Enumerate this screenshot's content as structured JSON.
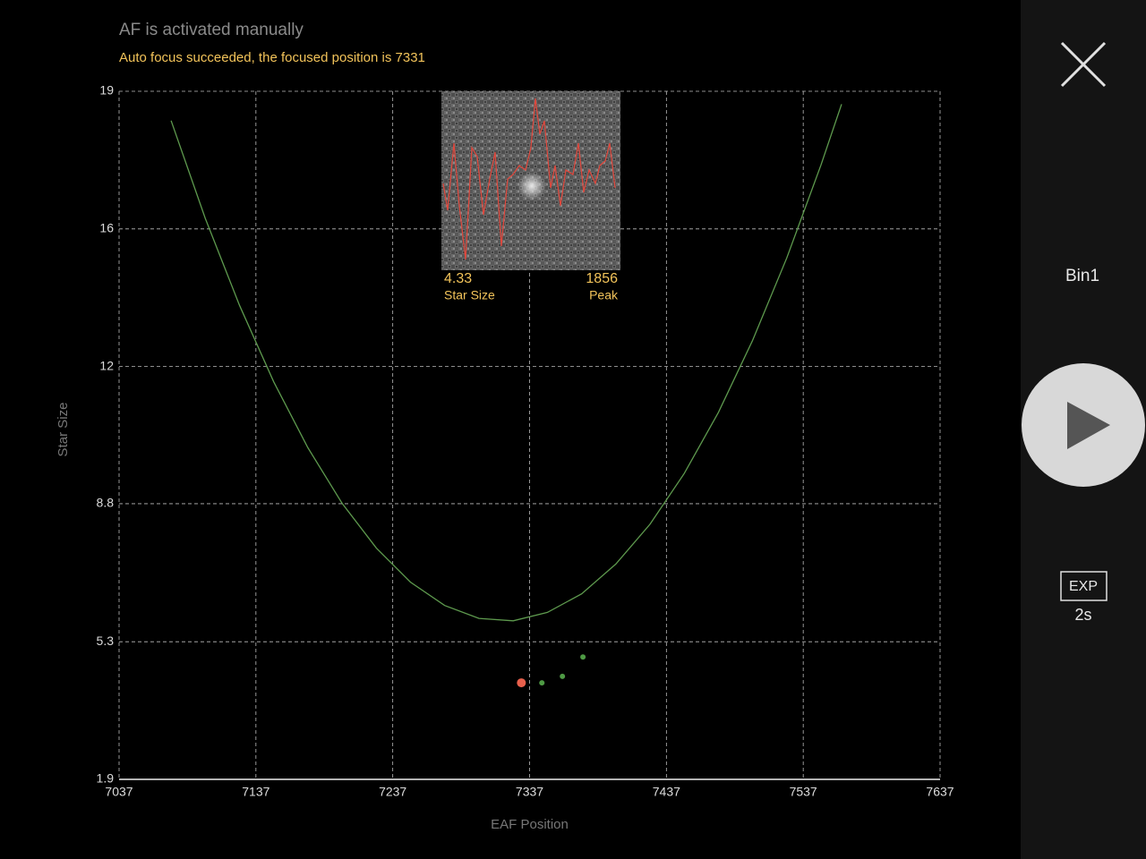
{
  "header": {
    "status": "AF is activated manually",
    "message": "Auto focus succeeded, the focused position is 7331"
  },
  "chart_data": {
    "type": "scatter",
    "x_label": "EAF Position",
    "y_label": "Star Size",
    "xlim": [
      7037,
      7637
    ],
    "xticks": [
      7037,
      7137,
      7237,
      7337,
      7437,
      7537,
      7637
    ],
    "ylim": [
      1.9,
      19
    ],
    "yticks": [
      1.9,
      {
        "value": 5.32,
        "label": "5.3"
      },
      {
        "value": 8.75,
        "label": "8.8"
      },
      {
        "value": 12.16,
        "label": "12"
      },
      {
        "value": 15.58,
        "label": "16"
      },
      19
    ],
    "grid": true,
    "series": [
      {
        "mode": "line",
        "color": "#5e9a4e",
        "x": [
          7075,
          7100,
          7125,
          7150,
          7175,
          7200,
          7225,
          7250,
          7275,
          7300,
          7325,
          7350,
          7375,
          7400,
          7425,
          7450,
          7475,
          7500,
          7525,
          7550,
          7565
        ],
        "values": [
          18.27,
          15.84,
          13.68,
          11.78,
          10.14,
          8.76,
          7.65,
          6.8,
          6.22,
          5.9,
          5.84,
          6.05,
          6.51,
          7.25,
          8.24,
          9.5,
          11.02,
          12.81,
          14.86,
          17.17,
          18.68
        ]
      },
      {
        "mode": "points",
        "color": "#e8604c",
        "marker_size": 5,
        "x": [
          7331
        ],
        "values": [
          4.3
        ]
      },
      {
        "mode": "points",
        "color": "#4e9a44",
        "marker_size": 3,
        "x": [
          7346,
          7361,
          7376
        ],
        "values": [
          4.3,
          4.46,
          4.94
        ]
      }
    ]
  },
  "star_preview": {
    "star_size": "4.33",
    "star_size_label": "Star Size",
    "peak": "1856",
    "peak_label": "Peak"
  },
  "side_panel": {
    "binning": "Bin1",
    "exposure_label": "EXP",
    "exposure": "2s"
  }
}
